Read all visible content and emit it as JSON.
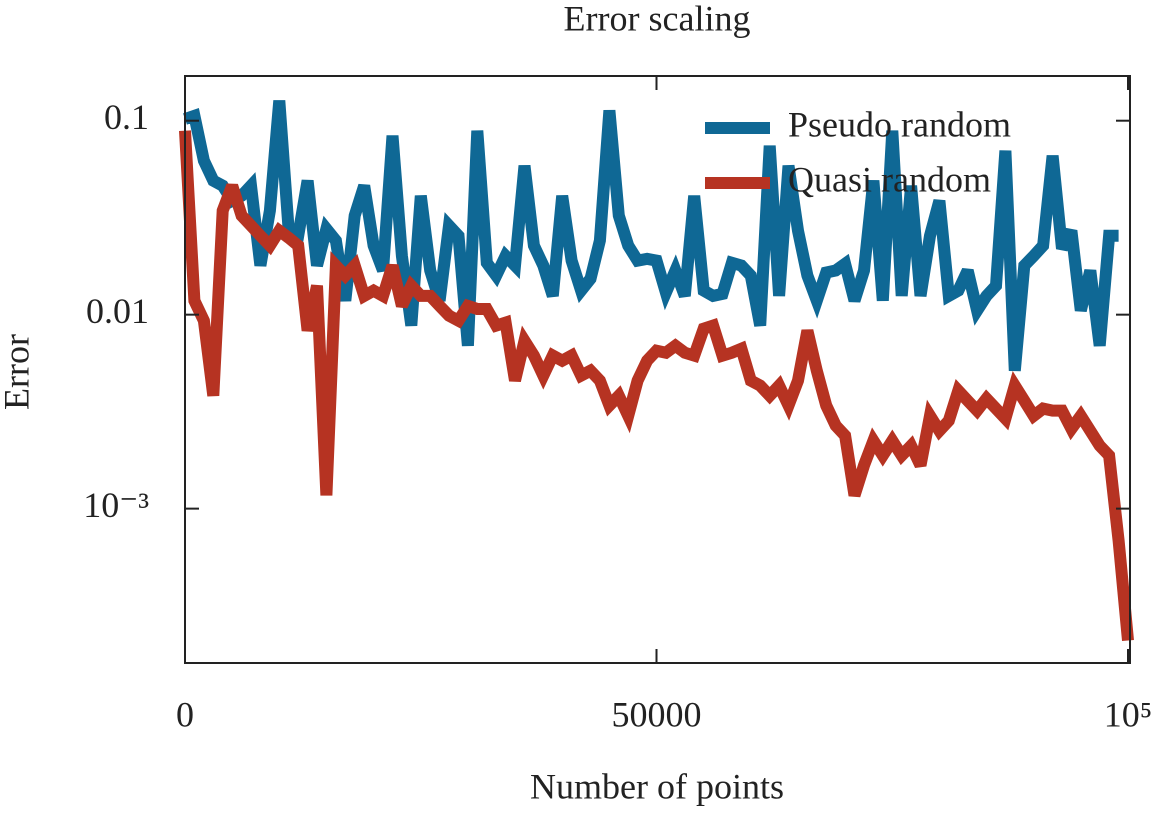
{
  "chart_data": {
    "type": "line",
    "title": "Error scaling",
    "x_label": "Number of points",
    "y_label": "Error",
    "yscale": "log",
    "legend": "upper right",
    "xlim": [
      0,
      100000
    ],
    "ylim": [
      0.00016,
      0.17
    ],
    "xticks": [
      0,
      50000,
      {
        "value": 100000,
        "label": "10⁵"
      }
    ],
    "yticks": [
      0.1,
      0.01,
      {
        "value": 0.001,
        "label": "10⁻³"
      }
    ],
    "x": [
      0,
      1000,
      2000,
      3000,
      4000,
      5000,
      6000,
      7000,
      8000,
      9000,
      10000,
      11000,
      12000,
      13000,
      14000,
      15000,
      16000,
      17000,
      18000,
      19000,
      20000,
      21000,
      22000,
      23000,
      24000,
      25000,
      26000,
      27000,
      28000,
      29000,
      30000,
      31000,
      32000,
      33000,
      34000,
      35000,
      36000,
      37000,
      38000,
      39000,
      40000,
      41000,
      42000,
      43000,
      44000,
      45000,
      46000,
      47000,
      48000,
      49000,
      50000,
      51000,
      52000,
      53000,
      54000,
      55000,
      56000,
      57000,
      58000,
      59000,
      60000,
      61000,
      62000,
      63000,
      64000,
      65000,
      66000,
      67000,
      68000,
      69000,
      70000,
      71000,
      72000,
      73000,
      74000,
      75000,
      76000,
      77000,
      78000,
      79000,
      80000,
      81000,
      82000,
      83000,
      84000,
      85000,
      86000,
      87000,
      88000,
      89000,
      90000,
      91000,
      92000,
      93000,
      94000,
      95000,
      96000,
      97000,
      98000,
      99000,
      100000
    ],
    "series": [
      {
        "name": "Pseudo random",
        "color": "#0f6895",
        "values": [
          0.102,
          0.106,
          0.0622,
          0.0491,
          0.0462,
          0.0387,
          0.041,
          0.0462,
          0.0179,
          0.0344,
          0.127,
          0.0271,
          0.0255,
          0.0491,
          0.0179,
          0.0277,
          0.0241,
          0.0118,
          0.0324,
          0.0462,
          0.0227,
          0.0169,
          0.0837,
          0.0201,
          0.00878,
          0.041,
          0.0169,
          0.0118,
          0.0288,
          0.0255,
          0.00692,
          0.0888,
          0.0185,
          0.0159,
          0.0201,
          0.0179,
          0.0586,
          0.0227,
          0.0179,
          0.0125,
          0.041,
          0.019,
          0.0133,
          0.0153,
          0.0241,
          0.113,
          0.0324,
          0.0227,
          0.019,
          0.0194,
          0.019,
          0.013,
          0.0169,
          0.0125,
          0.041,
          0.0133,
          0.0125,
          0.0128,
          0.0185,
          0.0179,
          0.0159,
          0.00878,
          0.0743,
          0.0125,
          0.0586,
          0.0271,
          0.0159,
          0.0118,
          0.0165,
          0.0169,
          0.0183,
          0.0118,
          0.0169,
          0.0491,
          0.0118,
          0.0888,
          0.0125,
          0.0462,
          0.0125,
          0.0255,
          0.0387,
          0.0125,
          0.0133,
          0.0169,
          0.0105,
          0.0125,
          0.0141,
          0.07,
          0.00514,
          0.0179,
          0.0201,
          0.0227,
          0.066,
          0.0219,
          0.0271,
          0.0105,
          0.0169,
          0.00692,
          0.0255,
          0.0255,
          null
        ]
      },
      {
        "name": "Quasi random",
        "color": "#b63322",
        "values": [
          0.0888,
          0.0118,
          0.00931,
          0.00382,
          0.0344,
          0.0462,
          0.0324,
          0.0288,
          0.0255,
          0.0227,
          0.0271,
          0.0249,
          0.0227,
          0.00828,
          0.0141,
          0.00117,
          0.0179,
          0.0159,
          0.0179,
          0.0125,
          0.0133,
          0.0125,
          0.0179,
          0.0111,
          0.0141,
          0.0125,
          0.0125,
          0.0111,
          0.00989,
          0.00931,
          0.0111,
          0.0107,
          0.0107,
          0.00878,
          0.0091,
          0.00457,
          0.00734,
          0.00615,
          0.00485,
          0.00615,
          0.00579,
          0.00615,
          0.00485,
          0.00514,
          0.00457,
          0.0034,
          0.00382,
          0.00301,
          0.00457,
          0.00579,
          0.00652,
          0.00637,
          0.00692,
          0.00637,
          0.00615,
          0.00847,
          0.00878,
          0.00615,
          0.00637,
          0.00668,
          0.00457,
          0.00431,
          0.00382,
          0.00431,
          0.0034,
          0.00457,
          0.00828,
          0.00514,
          0.0034,
          0.00268,
          0.00238,
          0.00117,
          0.00167,
          0.00224,
          0.00188,
          0.00224,
          0.00188,
          0.00211,
          0.00167,
          0.00301,
          0.00252,
          0.00284,
          0.00406,
          0.0036,
          0.0032,
          0.00369,
          0.00328,
          0.00291,
          0.00431,
          0.0036,
          0.00301,
          0.00328,
          0.0032,
          0.0032,
          0.00258,
          0.00301,
          0.00252,
          0.00211,
          0.00188,
          0.000684,
          0.000209
        ]
      }
    ]
  }
}
